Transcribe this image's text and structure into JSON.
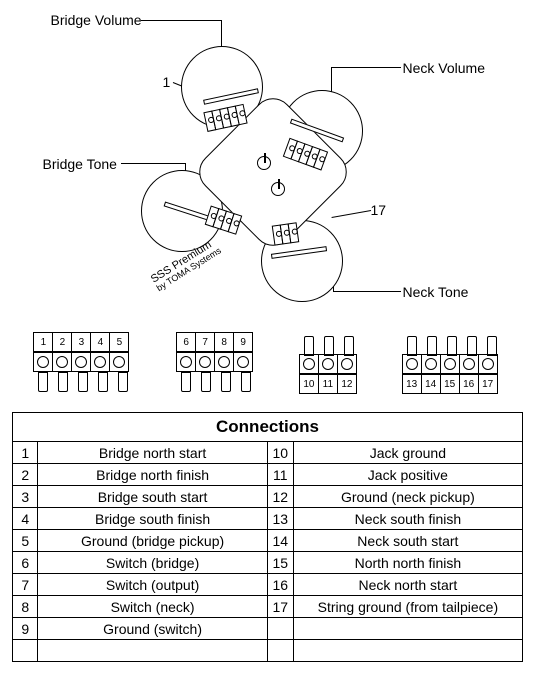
{
  "labels": {
    "bridge_volume": "Bridge Volume",
    "neck_volume": "Neck Volume",
    "bridge_tone": "Bridge Tone",
    "neck_tone": "Neck Tone",
    "marker_1": "1",
    "marker_17": "17",
    "sss_line1": "SSS Premium",
    "sss_line2": "by TOMA Systems"
  },
  "connectors": [
    {
      "style": "lowered",
      "pins": [
        "1",
        "2",
        "3",
        "4",
        "5"
      ]
    },
    {
      "style": "lowered",
      "pins": [
        "6",
        "7",
        "8",
        "9"
      ]
    },
    {
      "style": "raised",
      "pins": [
        "10",
        "11",
        "12"
      ]
    },
    {
      "style": "raised",
      "pins": [
        "13",
        "14",
        "15",
        "16",
        "17"
      ]
    }
  ],
  "table": {
    "title": "Connections",
    "rows": [
      {
        "n1": "1",
        "d1": "Bridge north start",
        "n2": "10",
        "d2": "Jack ground"
      },
      {
        "n1": "2",
        "d1": "Bridge north finish",
        "n2": "11",
        "d2": "Jack positive"
      },
      {
        "n1": "3",
        "d1": "Bridge south start",
        "n2": "12",
        "d2": "Ground (neck pickup)"
      },
      {
        "n1": "4",
        "d1": "Bridge south finish",
        "n2": "13",
        "d2": "Neck south finish"
      },
      {
        "n1": "5",
        "d1": "Ground (bridge pickup)",
        "n2": "14",
        "d2": "Neck south start"
      },
      {
        "n1": "6",
        "d1": "Switch (bridge)",
        "n2": "15",
        "d2": "North north finish"
      },
      {
        "n1": "7",
        "d1": "Switch (output)",
        "n2": "16",
        "d2": "Neck north start"
      },
      {
        "n1": "8",
        "d1": "Switch (neck)",
        "n2": "17",
        "d2": "String ground (from tailpiece)"
      },
      {
        "n1": "9",
        "d1": "Ground (switch)",
        "n2": "",
        "d2": ""
      },
      {
        "n1": "",
        "d1": "",
        "n2": "",
        "d2": ""
      }
    ]
  },
  "style": {
    "stroke": "#000000",
    "bg": "#ffffff",
    "font": "Arial",
    "label_fontsize": 14,
    "table_title_fontsize": 17,
    "table_cell_fontsize": 14,
    "connector_label_fontsize": 10
  }
}
